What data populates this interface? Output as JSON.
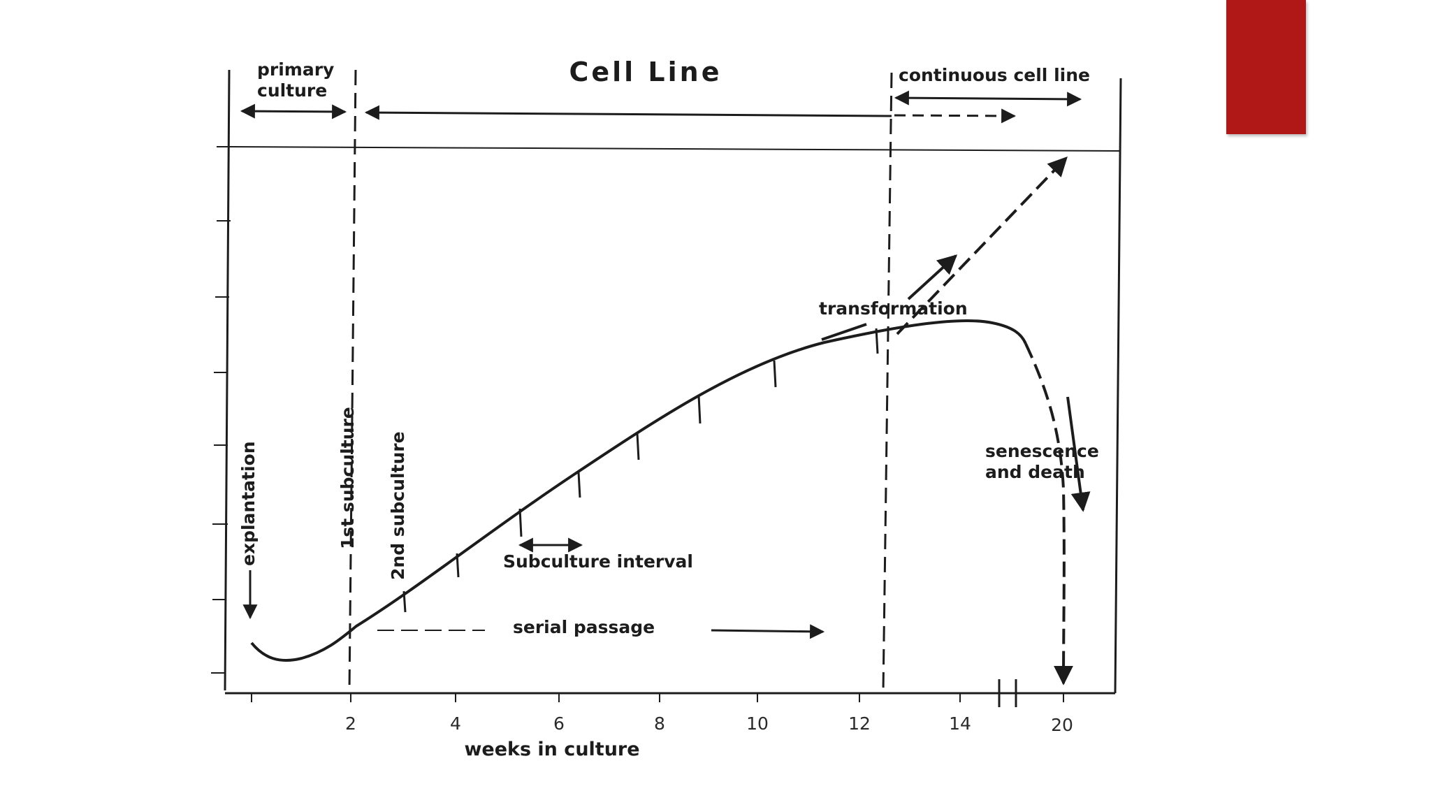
{
  "slide": {
    "accent_color": "#b01818",
    "background": "#ffffff"
  },
  "diagram": {
    "title": "Cell Line",
    "regions": {
      "primary_culture": "primary culture",
      "continuous_cell_line": "continuous cell line"
    },
    "annotations": {
      "explantation": "explantation",
      "first_subculture": "1st subculture",
      "second_subculture": "2nd subculture",
      "subculture_interval": "Subculture interval",
      "serial_passage": "serial passage",
      "transformation": "transformation",
      "senescence": "senescence",
      "and_death": "and death"
    },
    "x_axis": {
      "label": "weeks in culture",
      "ticks": [
        "2",
        "4",
        "6",
        "8",
        "10",
        "12",
        "14",
        "20"
      ]
    }
  }
}
